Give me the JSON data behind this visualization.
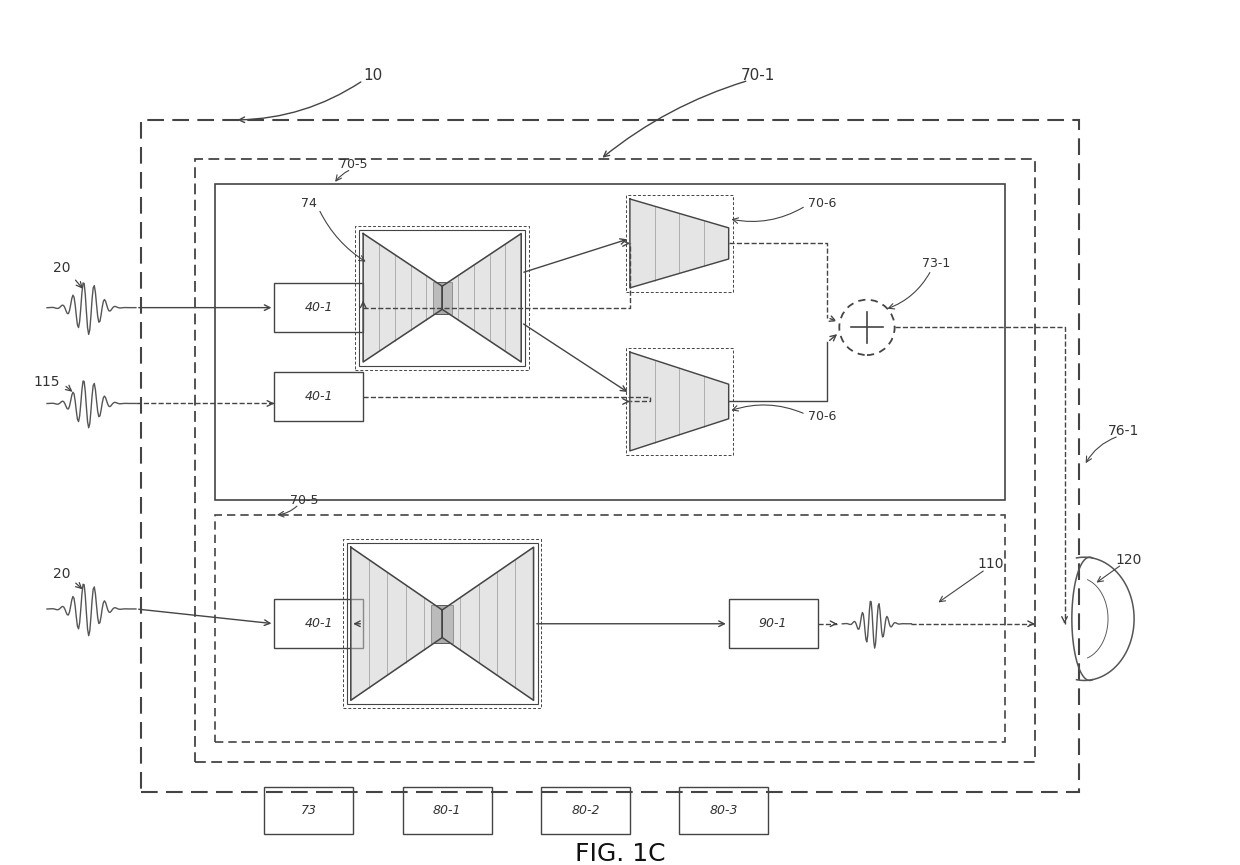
{
  "title": "FIG. 1C",
  "bg_color": "#ffffff",
  "lc": "#444444",
  "tc": "#333333",
  "fig_width": 12.4,
  "fig_height": 8.65,
  "dpi": 100
}
